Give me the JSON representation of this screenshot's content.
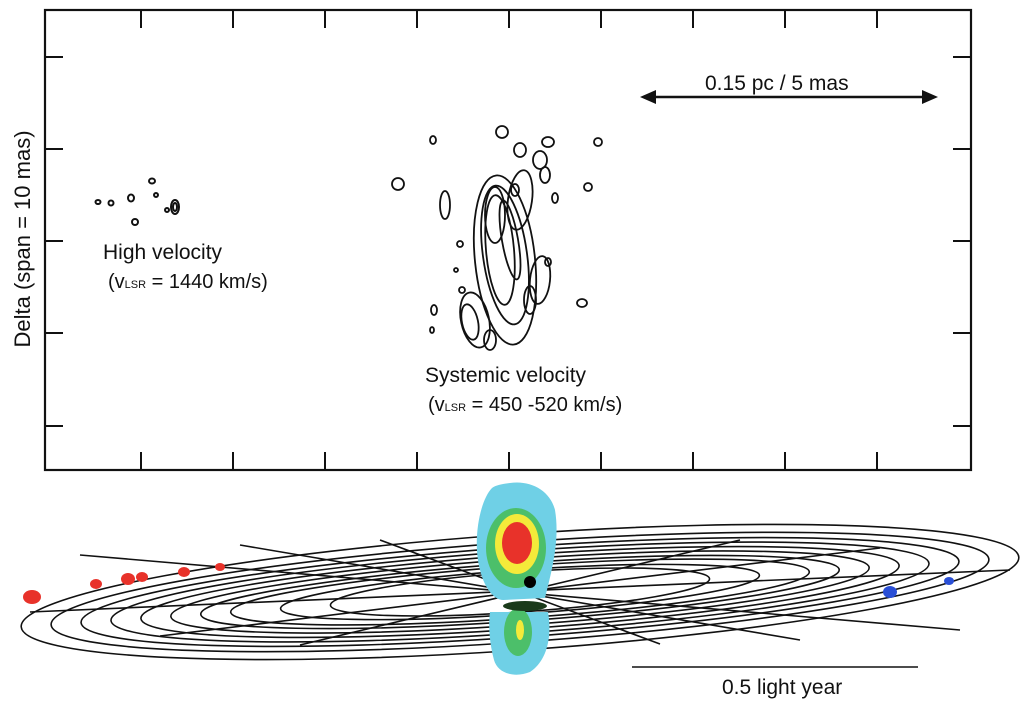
{
  "top_panel": {
    "y_axis_label": "Delta (span = 10 mas)",
    "scale_bar_label": "0.15 pc / 5 mas",
    "high_velocity": {
      "title": "High velocity",
      "vlsr_prefix": "(v",
      "vlsr_sub": "LSR",
      "vlsr_value": " = 1440 km/s)"
    },
    "systemic_velocity": {
      "title": "Systemic velocity",
      "vlsr_prefix": "(v",
      "vlsr_sub": "LSR",
      "vlsr_value": " = 450 -520 km/s)"
    }
  },
  "bottom_panel": {
    "scale_bar_label": "0.5 light year",
    "redshifted_color": "#e8322a",
    "blueshifted_color": "#2a4fd6",
    "jet_colors": {
      "outer": "#6fd0e6",
      "mid": "#4cbf6a",
      "inner": "#f4ea3a",
      "core": "#e8322a"
    }
  }
}
